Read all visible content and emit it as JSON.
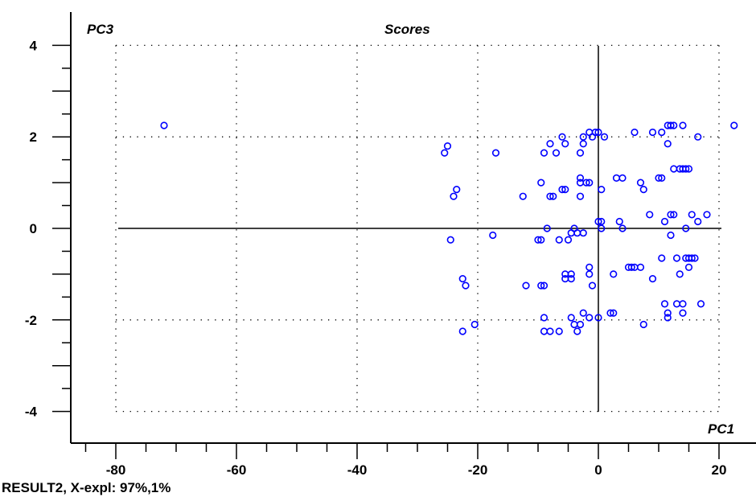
{
  "chart_data": {
    "type": "scatter",
    "title": "Scores",
    "xlabel": "PC1",
    "ylabel": "PC3",
    "xlim": [
      -88,
      24
    ],
    "ylim": [
      -4.6,
      4.7
    ],
    "grid": "dotted",
    "x_ticks": [
      -80,
      -60,
      -40,
      -20,
      0,
      20
    ],
    "y_ticks": [
      4,
      2,
      0,
      -2,
      -4
    ],
    "marker_color": "#0000ff",
    "points": [
      [
        -72,
        2.25
      ],
      [
        -25.5,
        1.65
      ],
      [
        -25,
        1.8
      ],
      [
        -23.5,
        0.85
      ],
      [
        -24,
        0.7
      ],
      [
        -24.5,
        -0.25
      ],
      [
        -22.5,
        -1.1
      ],
      [
        -22,
        -1.25
      ],
      [
        -22.5,
        -2.25
      ],
      [
        -20.5,
        -2.1
      ],
      [
        -17,
        1.65
      ],
      [
        -17.5,
        -0.15
      ],
      [
        -12.5,
        0.7
      ],
      [
        -12,
        -1.25
      ],
      [
        -10,
        -0.25
      ],
      [
        -9.5,
        -0.25
      ],
      [
        -9.5,
        1.0
      ],
      [
        -9.5,
        -1.25
      ],
      [
        -9,
        -1.25
      ],
      [
        -9,
        -1.95
      ],
      [
        -9,
        -2.25
      ],
      [
        -8.5,
        0.0
      ],
      [
        -8,
        0.7
      ],
      [
        -8,
        1.85
      ],
      [
        -8,
        -2.25
      ],
      [
        -9,
        1.65
      ],
      [
        -7.5,
        0.7
      ],
      [
        -7,
        1.65
      ],
      [
        -6.5,
        -0.25
      ],
      [
        -6.5,
        -2.25
      ],
      [
        -6,
        0.85
      ],
      [
        -5.5,
        0.85
      ],
      [
        -6,
        2.0
      ],
      [
        -5.5,
        1.85
      ],
      [
        -5.5,
        -1.0
      ],
      [
        -5.5,
        -1.1
      ],
      [
        -4.5,
        -1.1
      ],
      [
        -4.5,
        -1.0
      ],
      [
        -5,
        -0.25
      ],
      [
        -4.5,
        -0.1
      ],
      [
        -4.5,
        -1.95
      ],
      [
        -4,
        -2.1
      ],
      [
        -4,
        0.0
      ],
      [
        -3.5,
        -0.1
      ],
      [
        -3,
        1.65
      ],
      [
        -3,
        1.1
      ],
      [
        -3,
        1.0
      ],
      [
        -3,
        0.7
      ],
      [
        -3.5,
        -2.25
      ],
      [
        -3,
        -2.1
      ],
      [
        -2.5,
        2.0
      ],
      [
        -2.5,
        1.85
      ],
      [
        -2.5,
        -0.1
      ],
      [
        -2.5,
        -1.85
      ],
      [
        -2,
        1.0
      ],
      [
        -1.5,
        2.1
      ],
      [
        -1.5,
        1.0
      ],
      [
        -1.5,
        -0.85
      ],
      [
        -1.5,
        -1.0
      ],
      [
        -1.5,
        -1.95
      ],
      [
        -1,
        -1.25
      ],
      [
        -1,
        2.0
      ],
      [
        -0.5,
        2.1
      ],
      [
        0,
        2.1
      ],
      [
        0,
        0.15
      ],
      [
        0,
        -1.95
      ],
      [
        0.5,
        0.85
      ],
      [
        0.5,
        0.15
      ],
      [
        1,
        2.0
      ],
      [
        0.5,
        0.0
      ],
      [
        2,
        -1.85
      ],
      [
        2.5,
        -1.85
      ],
      [
        2.5,
        -1.0
      ],
      [
        3,
        1.1
      ],
      [
        3.5,
        0.15
      ],
      [
        4,
        0.0
      ],
      [
        4,
        1.1
      ],
      [
        5,
        -0.85
      ],
      [
        5.5,
        -0.85
      ],
      [
        6,
        -0.85
      ],
      [
        6,
        2.1
      ],
      [
        7,
        1.0
      ],
      [
        7,
        -0.85
      ],
      [
        7.5,
        0.85
      ],
      [
        7.5,
        -2.1
      ],
      [
        8.5,
        0.3
      ],
      [
        9,
        -1.1
      ],
      [
        9,
        2.1
      ],
      [
        10,
        1.1
      ],
      [
        10.5,
        1.1
      ],
      [
        10.5,
        2.1
      ],
      [
        10.5,
        -0.65
      ],
      [
        11,
        0.15
      ],
      [
        11,
        -1.65
      ],
      [
        11.5,
        1.85
      ],
      [
        11.5,
        -1.95
      ],
      [
        11.5,
        -1.85
      ],
      [
        11.5,
        2.25
      ],
      [
        12,
        2.25
      ],
      [
        12,
        0.3
      ],
      [
        12,
        -0.15
      ],
      [
        12.5,
        1.3
      ],
      [
        12.5,
        0.3
      ],
      [
        12.5,
        2.25
      ],
      [
        13,
        -0.65
      ],
      [
        13,
        -1.65
      ],
      [
        13.5,
        1.3
      ],
      [
        13.5,
        -1.0
      ],
      [
        14,
        1.3
      ],
      [
        14,
        -1.65
      ],
      [
        14,
        2.25
      ],
      [
        14,
        -1.85
      ],
      [
        14.5,
        1.3
      ],
      [
        14.5,
        0.0
      ],
      [
        14.5,
        -0.65
      ],
      [
        15,
        1.3
      ],
      [
        15,
        -0.65
      ],
      [
        15,
        -0.85
      ],
      [
        15.5,
        -0.65
      ],
      [
        15.5,
        0.3
      ],
      [
        16,
        -0.65
      ],
      [
        16.5,
        0.15
      ],
      [
        16.5,
        2.0
      ],
      [
        17,
        -1.65
      ],
      [
        18,
        0.3
      ],
      [
        22.5,
        2.25
      ]
    ]
  },
  "footer": {
    "caption": "RESULT2, X-expl: 97%,1%"
  }
}
